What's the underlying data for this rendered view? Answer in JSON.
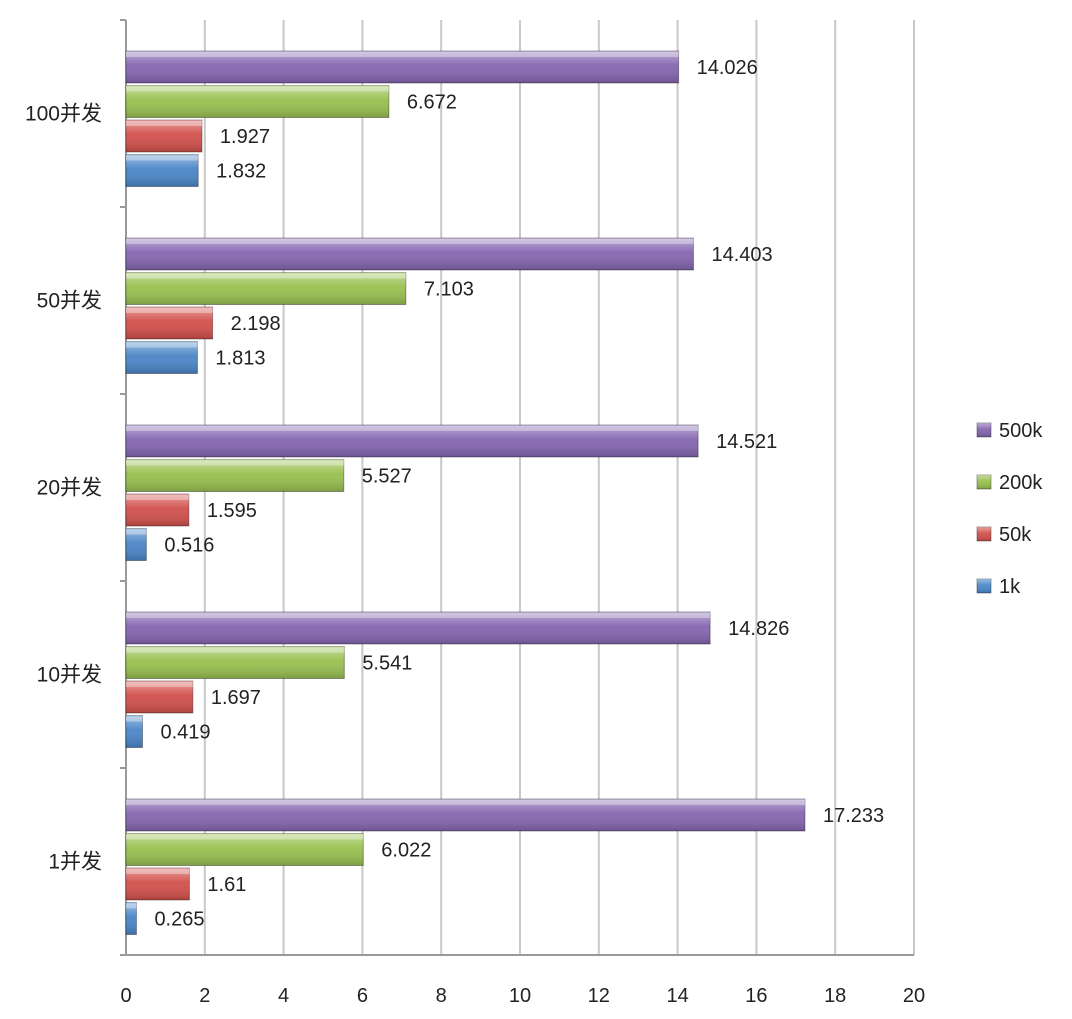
{
  "chart_data": {
    "type": "bar",
    "orientation": "horizontal",
    "categories": [
      "1并发",
      "10并发",
      "20并发",
      "50并发",
      "100并发"
    ],
    "series": [
      {
        "name": "1k",
        "color": "#4a86c8",
        "values": [
          0.265,
          0.419,
          0.516,
          1.813,
          1.832
        ],
        "labels": [
          "0.265",
          "0.419",
          "0.516",
          "1.813",
          "1.832"
        ]
      },
      {
        "name": "50k",
        "color": "#d2504c",
        "values": [
          1.61,
          1.697,
          1.595,
          2.198,
          1.927
        ],
        "labels": [
          "1.61",
          "1.697",
          "1.595",
          "2.198",
          "1.927"
        ]
      },
      {
        "name": "200k",
        "color": "#98c04f",
        "values": [
          6.022,
          5.541,
          5.527,
          7.103,
          6.672
        ],
        "labels": [
          "6.022",
          "5.541",
          "5.527",
          "7.103",
          "6.672"
        ]
      },
      {
        "name": "500k",
        "color": "#8466b0",
        "values": [
          17.233,
          14.826,
          14.521,
          14.403,
          14.026
        ],
        "labels": [
          "17.233",
          "14.826",
          "14.521",
          "14.403",
          "14.026"
        ]
      }
    ],
    "xlim": [
      0,
      20
    ],
    "xticks": [
      "0",
      "2",
      "4",
      "6",
      "8",
      "10",
      "12",
      "14",
      "16",
      "18",
      "20"
    ],
    "grid": "vertical",
    "legend": "right",
    "legend_order": [
      "500k",
      "200k",
      "50k",
      "1k"
    ],
    "title": "",
    "xlabel": "",
    "ylabel": ""
  }
}
